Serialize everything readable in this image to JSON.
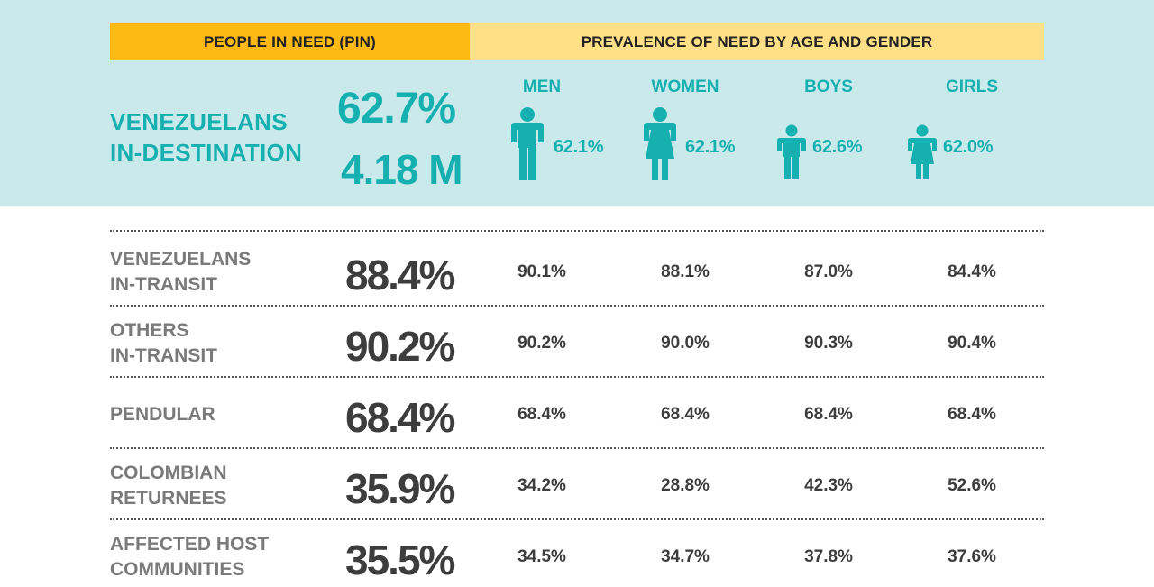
{
  "headers": {
    "pin": "PEOPLE IN NEED (PIN)",
    "prevalence": "PREVALENCE OF NEED BY AGE AND GENDER"
  },
  "destination": {
    "label_line1": "VENEZUELANS",
    "label_line2": "IN-DESTINATION",
    "pin_pct": "62.7%",
    "pin_count": "4.18 M",
    "groups": [
      {
        "name": "MEN",
        "value": "62.1%",
        "icon": "man-icon"
      },
      {
        "name": "WOMEN",
        "value": "62.1%",
        "icon": "woman-icon"
      },
      {
        "name": "BOYS",
        "value": "62.6%",
        "icon": "boy-icon"
      },
      {
        "name": "GIRLS",
        "value": "62.0%",
        "icon": "girl-icon"
      }
    ]
  },
  "rows": [
    {
      "line1": "VENEZUELANS",
      "line2": "IN-TRANSIT",
      "pin": "88.4%",
      "men": "90.1%",
      "women": "88.1%",
      "boys": "87.0%",
      "girls": "84.4%"
    },
    {
      "line1": "OTHERS",
      "line2": "IN-TRANSIT",
      "pin": "90.2%",
      "men": "90.2%",
      "women": "90.0%",
      "boys": "90.3%",
      "girls": "90.4%"
    },
    {
      "line1": "PENDULAR",
      "line2": "",
      "pin": "68.4%",
      "men": "68.4%",
      "women": "68.4%",
      "boys": "68.4%",
      "girls": "68.4%"
    },
    {
      "line1": "COLOMBIAN",
      "line2": "RETURNEES",
      "pin": "35.9%",
      "men": "34.2%",
      "women": "28.8%",
      "boys": "42.3%",
      "girls": "52.6%"
    },
    {
      "line1": "AFFECTED HOST",
      "line2": "COMMUNITIES",
      "pin": "35.5%",
      "men": "34.5%",
      "women": "34.7%",
      "boys": "37.8%",
      "girls": "37.6%"
    }
  ],
  "colors": {
    "teal": "#17b0b0",
    "band": "#c9e9eb",
    "header_dark": "#fdb913",
    "header_light": "#ffe087",
    "text_dark": "#3d3d3d",
    "text_gray": "#7a7a7a"
  }
}
